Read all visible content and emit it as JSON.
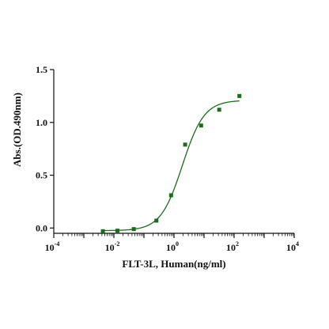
{
  "chart_data": {
    "type": "scatter",
    "title": "",
    "xlabel": "FLT-3L, Human(ng/ml)",
    "ylabel": "Abs.(OD.490nm)",
    "x_scale": "log10",
    "xlim": [
      0.0001,
      10000
    ],
    "ylim": [
      -0.05,
      1.5
    ],
    "x_ticks": [
      {
        "value": 0.0001,
        "base": "10",
        "exp": "-4"
      },
      {
        "value": 0.01,
        "base": "10",
        "exp": "-2"
      },
      {
        "value": 1,
        "base": "10",
        "exp": "0"
      },
      {
        "value": 100,
        "base": "10",
        "exp": "2"
      },
      {
        "value": 10000,
        "base": "10",
        "exp": "4"
      }
    ],
    "y_ticks": [
      {
        "value": 0.0,
        "label": "0.0"
      },
      {
        "value": 0.5,
        "label": "0.5"
      },
      {
        "value": 1.0,
        "label": "1.0"
      },
      {
        "value": 1.5,
        "label": "1.5"
      }
    ],
    "grid": false,
    "legend": "none",
    "colors": {
      "points": "#1e6b1e",
      "curve": "#1e6b1e",
      "axis": "#111111"
    },
    "series": [
      {
        "points": [
          {
            "x": 0.0043,
            "y": -0.03
          },
          {
            "x": 0.0131,
            "y": -0.025
          },
          {
            "x": 0.046,
            "y": -0.01
          },
          {
            "x": 0.26,
            "y": 0.07
          },
          {
            "x": 0.8,
            "y": 0.31
          },
          {
            "x": 2.35,
            "y": 0.79
          },
          {
            "x": 8.0,
            "y": 0.97
          },
          {
            "x": 32,
            "y": 1.12
          },
          {
            "x": 150,
            "y": 1.25
          }
        ],
        "fit_curve": {
          "model": "4PL",
          "bottom": -0.025,
          "top": 1.21,
          "ec50": 1.9,
          "hill": 1.2,
          "x_range": [
            0.0043,
            150
          ]
        }
      }
    ]
  }
}
